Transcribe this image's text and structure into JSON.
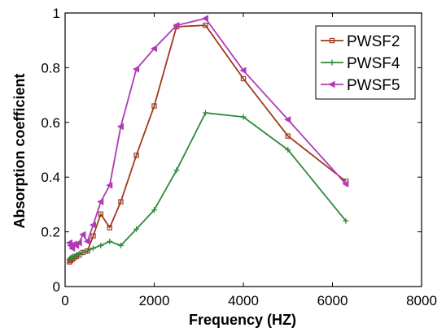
{
  "chart_data": {
    "type": "line",
    "xlabel": "Frequency (HZ)",
    "ylabel": "Absorption coefficient",
    "xlim": [
      0,
      8000
    ],
    "ylim": [
      0,
      1
    ],
    "xticks": [
      0,
      2000,
      4000,
      6000,
      8000
    ],
    "yticks": [
      0,
      0.2,
      0.4,
      0.6,
      0.8,
      1
    ],
    "xtick_labels": [
      "0",
      "2000",
      "4000",
      "6000",
      "8000"
    ],
    "ytick_labels": [
      "0",
      "0.2",
      "0.4",
      "0.6",
      "0.8",
      "1"
    ],
    "grid": false,
    "legend_position": "top-right",
    "series": [
      {
        "name": "PWSF2",
        "color": "#a0391f",
        "marker": "square",
        "x": [
          100,
          125,
          160,
          200,
          250,
          315,
          400,
          500,
          630,
          800,
          1000,
          1250,
          1600,
          2000,
          2500,
          3150,
          4000,
          5000,
          6300
        ],
        "y": [
          0.09,
          0.095,
          0.1,
          0.105,
          0.11,
          0.115,
          0.125,
          0.13,
          0.185,
          0.265,
          0.215,
          0.31,
          0.48,
          0.66,
          0.95,
          0.955,
          0.76,
          0.55,
          0.385
        ]
      },
      {
        "name": "PWSF4",
        "color": "#2f8a3a",
        "marker": "plus",
        "x": [
          100,
          125,
          160,
          200,
          250,
          315,
          400,
          500,
          630,
          800,
          1000,
          1250,
          1600,
          2000,
          2500,
          3150,
          4000,
          5000,
          6300
        ],
        "y": [
          0.1,
          0.105,
          0.11,
          0.11,
          0.115,
          0.12,
          0.125,
          0.13,
          0.14,
          0.15,
          0.165,
          0.15,
          0.21,
          0.28,
          0.425,
          0.635,
          0.62,
          0.5,
          0.24
        ]
      },
      {
        "name": "PWSF5",
        "color": "#b03ab8",
        "marker": "triangle-left",
        "x": [
          100,
          125,
          160,
          200,
          250,
          315,
          400,
          500,
          630,
          800,
          1000,
          1250,
          1600,
          2000,
          2500,
          3150,
          4000,
          5000,
          6300
        ],
        "y": [
          0.16,
          0.15,
          0.14,
          0.155,
          0.15,
          0.16,
          0.19,
          0.165,
          0.225,
          0.31,
          0.37,
          0.585,
          0.795,
          0.87,
          0.955,
          0.98,
          0.79,
          0.61,
          0.375
        ]
      }
    ]
  }
}
